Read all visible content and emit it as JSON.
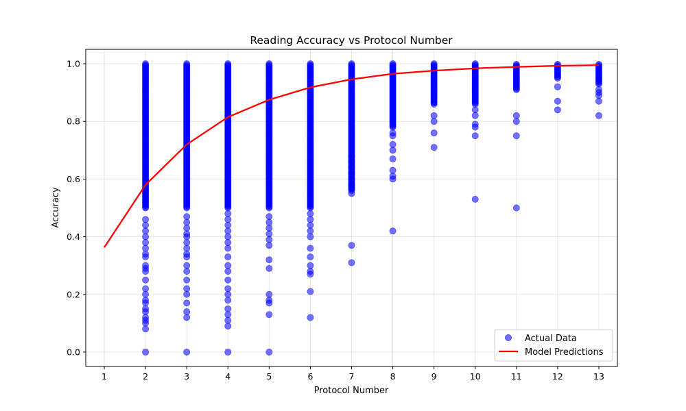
{
  "chart_data": {
    "type": "scatter",
    "title": "Reading Accuracy vs Protocol Number",
    "xlabel": "Protocol Number",
    "ylabel": "Accuracy",
    "xlim": [
      0.55,
      13.45
    ],
    "ylim": [
      -0.05,
      1.05
    ],
    "xticks": [
      "1",
      "2",
      "3",
      "4",
      "5",
      "6",
      "7",
      "8",
      "9",
      "10",
      "11",
      "12",
      "13"
    ],
    "yticks": [
      "0.0",
      "0.2",
      "0.4",
      "0.6",
      "0.8",
      "1.0"
    ],
    "grid": true,
    "legend_position": "lower-right",
    "colors": {
      "scatter": "#0000ff",
      "line": "#ff0000"
    },
    "series": [
      {
        "name": "Actual Data",
        "kind": "scatter",
        "points": [
          {
            "x": 2,
            "dense": [
              [
                0.5,
                1.0
              ]
            ],
            "sparse": [
              0.46,
              0.44,
              0.42,
              0.4,
              0.38,
              0.36,
              0.34,
              0.33,
              0.3,
              0.29,
              0.28,
              0.25,
              0.22,
              0.2,
              0.18,
              0.17,
              0.15,
              0.14,
              0.12,
              0.11,
              0.1,
              0.08,
              0.0
            ]
          },
          {
            "x": 3,
            "dense": [
              [
                0.5,
                1.0
              ]
            ],
            "sparse": [
              0.47,
              0.45,
              0.43,
              0.41,
              0.4,
              0.38,
              0.36,
              0.34,
              0.33,
              0.3,
              0.28,
              0.25,
              0.22,
              0.2,
              0.17,
              0.14,
              0.12,
              0.0
            ]
          },
          {
            "x": 4,
            "dense": [
              [
                0.5,
                1.0
              ]
            ],
            "sparse": [
              0.48,
              0.46,
              0.44,
              0.42,
              0.4,
              0.38,
              0.36,
              0.33,
              0.3,
              0.28,
              0.25,
              0.22,
              0.2,
              0.18,
              0.15,
              0.13,
              0.11,
              0.09,
              0.0
            ]
          },
          {
            "x": 5,
            "dense": [
              [
                0.5,
                1.0
              ]
            ],
            "sparse": [
              0.47,
              0.45,
              0.43,
              0.41,
              0.39,
              0.37,
              0.32,
              0.29,
              0.2,
              0.18,
              0.17,
              0.13,
              0.0
            ]
          },
          {
            "x": 6,
            "dense": [
              [
                0.5,
                1.0
              ]
            ],
            "sparse": [
              0.48,
              0.46,
              0.44,
              0.42,
              0.4,
              0.36,
              0.33,
              0.3,
              0.28,
              0.27,
              0.21,
              0.12
            ]
          },
          {
            "x": 7,
            "dense": [
              [
                0.56,
                1.0
              ]
            ],
            "sparse": [
              0.68,
              0.66,
              0.64,
              0.62,
              0.6,
              0.58,
              0.55,
              0.37,
              0.31
            ]
          },
          {
            "x": 8,
            "dense": [
              [
                0.78,
                1.0
              ]
            ],
            "sparse": [
              0.76,
              0.75,
              0.72,
              0.7,
              0.67,
              0.63,
              0.61,
              0.6,
              0.42
            ]
          },
          {
            "x": 9,
            "dense": [
              [
                0.86,
                1.0
              ]
            ],
            "sparse": [
              0.82,
              0.8,
              0.76,
              0.71
            ]
          },
          {
            "x": 10,
            "dense": [
              [
                0.86,
                1.0
              ]
            ],
            "sparse": [
              0.84,
              0.82,
              0.79,
              0.78,
              0.75,
              0.53
            ]
          },
          {
            "x": 11,
            "dense": [
              [
                0.91,
                1.0
              ]
            ],
            "sparse": [
              0.82,
              0.8,
              0.75,
              0.5
            ]
          },
          {
            "x": 12,
            "dense": [
              [
                0.95,
                1.0
              ]
            ],
            "sparse": [
              0.92,
              0.87,
              0.84
            ]
          },
          {
            "x": 13,
            "dense": [
              [
                0.93,
                1.0
              ]
            ],
            "sparse": [
              0.91,
              0.9,
              0.89,
              0.87,
              0.82
            ]
          }
        ]
      },
      {
        "name": "Model Predictions",
        "kind": "line",
        "x": [
          1,
          2,
          3,
          4,
          5,
          6,
          7,
          8,
          9,
          10,
          11,
          12,
          13
        ],
        "y": [
          0.363,
          0.58,
          0.72,
          0.815,
          0.875,
          0.918,
          0.946,
          0.965,
          0.976,
          0.984,
          0.989,
          0.993,
          0.995
        ]
      }
    ]
  }
}
